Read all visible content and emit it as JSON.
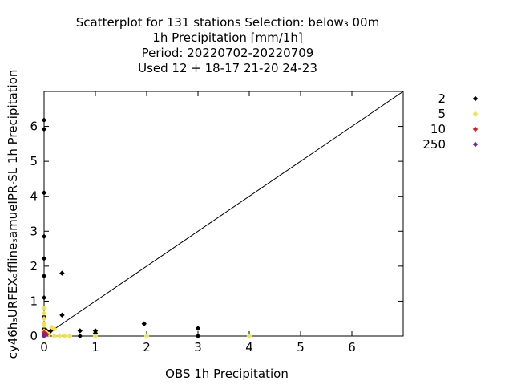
{
  "chart_data": {
    "type": "scatter",
    "title_lines": [
      "Scatterplot for  131 stations Selection: below₃ 00m",
      "1h Precipitation [mm/1h]",
      "Period: 20220702-20220709",
      "Used  12 + 18-17 21-20 24-23"
    ],
    "xlabel": "OBS 1h Precipitation",
    "ylabel": "cy46hₛURFEXₒfflineₛamueIPRᵣSL 1h Precipitation",
    "xlim": [
      0,
      7
    ],
    "ylim": [
      0,
      7
    ],
    "xticks": [
      "0",
      "1",
      "2",
      "3",
      "4",
      "5",
      "6"
    ],
    "yticks": [
      "0",
      "1",
      "2",
      "3",
      "4",
      "5",
      "6"
    ],
    "grid": false,
    "legend_position": "top-right outside",
    "reference_line": "y = x",
    "series": [
      {
        "name": "2",
        "color": "#000000",
        "points": [
          [
            0.0,
            6.18
          ],
          [
            0.0,
            5.92
          ],
          [
            0.0,
            4.1
          ],
          [
            0.0,
            2.85
          ],
          [
            0.0,
            2.22
          ],
          [
            0.0,
            1.72
          ],
          [
            0.0,
            1.1
          ],
          [
            0.0,
            0.55
          ],
          [
            0.0,
            0.2
          ],
          [
            0.0,
            0.05
          ],
          [
            0.05,
            0.15
          ],
          [
            0.1,
            0.1
          ],
          [
            0.15,
            0.18
          ],
          [
            0.35,
            1.8
          ],
          [
            0.35,
            0.6
          ],
          [
            0.7,
            0.15
          ],
          [
            0.7,
            0.0
          ],
          [
            1.0,
            0.15
          ],
          [
            1.0,
            0.08
          ],
          [
            1.95,
            0.35
          ],
          [
            3.0,
            0.22
          ],
          [
            3.0,
            0.0
          ]
        ]
      },
      {
        "name": "5",
        "color": "#f0e442",
        "points": [
          [
            0.0,
            0.8
          ],
          [
            0.0,
            0.65
          ],
          [
            0.0,
            0.5
          ],
          [
            0.0,
            0.35
          ],
          [
            0.0,
            0.3
          ],
          [
            0.0,
            0.15
          ],
          [
            0.05,
            0.1
          ],
          [
            0.1,
            0.05
          ],
          [
            0.15,
            0.25
          ],
          [
            0.2,
            0.2
          ],
          [
            0.2,
            0.0
          ],
          [
            0.3,
            0.0
          ],
          [
            0.4,
            0.0
          ],
          [
            0.5,
            0.0
          ],
          [
            1.0,
            0.0
          ],
          [
            2.0,
            0.0
          ],
          [
            4.0,
            0.0
          ]
        ]
      },
      {
        "name": "10",
        "color": "#e41a1c",
        "points": [
          [
            0.0,
            0.1
          ],
          [
            0.05,
            0.05
          ]
        ]
      },
      {
        "name": "250",
        "color": "#7b1fa2",
        "points": [
          [
            0.0,
            0.0
          ],
          [
            0.02,
            0.05
          ]
        ]
      }
    ]
  }
}
